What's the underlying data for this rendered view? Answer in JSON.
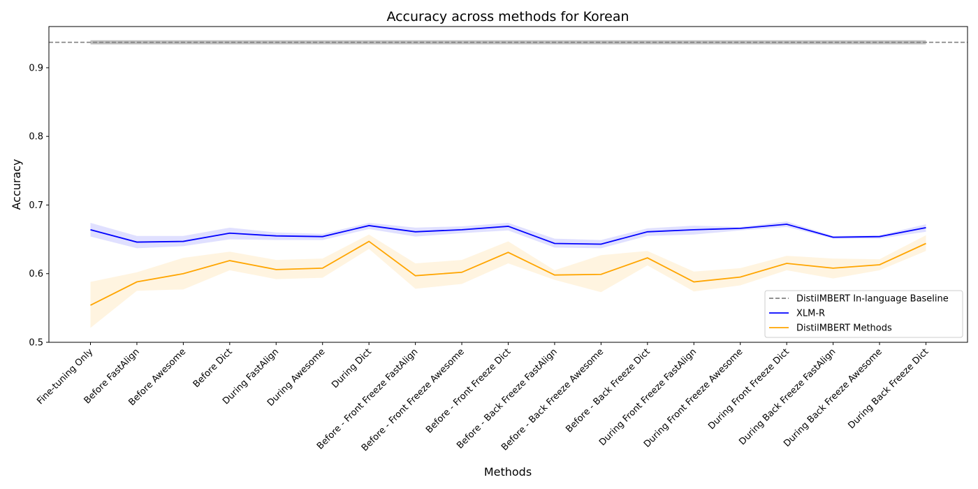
{
  "chart_data": {
    "type": "line",
    "title": "Accuracy across methods for Korean",
    "xlabel": "Methods",
    "ylabel": "Accuracy",
    "ylim": [
      0.5,
      0.96
    ],
    "yticks": [
      "0.5",
      "0.6",
      "0.7",
      "0.8",
      "0.9"
    ],
    "grid": false,
    "legend_position": "lower-right",
    "categories": [
      "Fine-tuning Only",
      "Before FastAlign",
      "Before Awesome",
      "Before Dict",
      "During FastAlign",
      "During Awesome",
      "During Dict",
      "Before - Front Freeze FastAlign",
      "Before - Front Freeze Awesome",
      "Before - Front Freeze Dict",
      "Before - Back Freeze FastAlign",
      "Before - Back Freeze Awesome",
      "Before - Back Freeze Dict",
      "During Front Freeze FastAlign",
      "During Front Freeze Awesome",
      "During Front Freeze Dict",
      "During Back Freeze FastAlign",
      "During Back Freeze Awesome",
      "During Back Freeze Dict"
    ],
    "baseline": {
      "name": "DistilMBERT In-language Baseline",
      "value": 0.937,
      "band": [
        0.934,
        0.94
      ],
      "color": "#808080"
    },
    "series": [
      {
        "name": "XLM-R",
        "color": "#0000ff",
        "values": [
          0.664,
          0.646,
          0.647,
          0.659,
          0.655,
          0.654,
          0.67,
          0.661,
          0.664,
          0.669,
          0.644,
          0.643,
          0.661,
          0.664,
          0.666,
          0.672,
          0.653,
          0.654,
          0.667
        ],
        "lower": [
          0.654,
          0.637,
          0.64,
          0.65,
          0.649,
          0.649,
          0.665,
          0.654,
          0.659,
          0.663,
          0.638,
          0.637,
          0.655,
          0.657,
          0.663,
          0.668,
          0.651,
          0.651,
          0.661
        ],
        "upper": [
          0.674,
          0.655,
          0.655,
          0.667,
          0.66,
          0.658,
          0.674,
          0.667,
          0.669,
          0.674,
          0.651,
          0.649,
          0.666,
          0.67,
          0.668,
          0.676,
          0.655,
          0.656,
          0.672
        ]
      },
      {
        "name": "DistilMBERT Methods",
        "color": "#ffa500",
        "values": [
          0.554,
          0.588,
          0.6,
          0.619,
          0.606,
          0.608,
          0.647,
          0.597,
          0.602,
          0.631,
          0.598,
          0.599,
          0.623,
          0.588,
          0.595,
          0.615,
          0.608,
          0.613,
          0.644
        ],
        "lower": [
          0.521,
          0.575,
          0.577,
          0.605,
          0.592,
          0.594,
          0.636,
          0.578,
          0.585,
          0.615,
          0.591,
          0.573,
          0.612,
          0.574,
          0.583,
          0.605,
          0.593,
          0.605,
          0.633
        ],
        "upper": [
          0.588,
          0.602,
          0.623,
          0.632,
          0.62,
          0.622,
          0.657,
          0.615,
          0.62,
          0.647,
          0.605,
          0.627,
          0.633,
          0.603,
          0.608,
          0.626,
          0.622,
          0.621,
          0.656
        ]
      }
    ]
  }
}
